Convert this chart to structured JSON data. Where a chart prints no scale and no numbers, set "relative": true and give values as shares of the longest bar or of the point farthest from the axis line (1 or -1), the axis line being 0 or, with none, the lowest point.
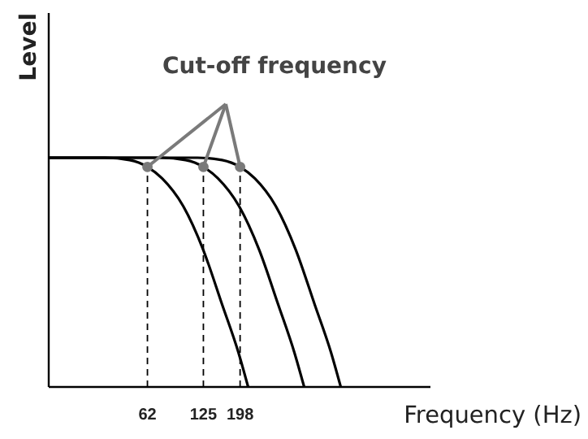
{
  "chart_data": {
    "type": "line",
    "relative": true,
    "log": "x",
    "xlabel": "Frequency (Hz)",
    "ylabel": "Level",
    "xlim": [
      18,
      2150
    ],
    "xticks": [
      62,
      125,
      198
    ],
    "grid": false,
    "line_style": "solid",
    "annotations": [
      "Cut-off frequency"
    ],
    "ref_lines": [
      {
        "axis": "x",
        "value": 62,
        "line_style": "dashed"
      },
      {
        "axis": "x",
        "value": 125,
        "line_style": "dashed"
      },
      {
        "axis": "x",
        "value": 198,
        "line_style": "dashed"
      }
    ],
    "series": [
      {
        "color": "#000000",
        "x": [
          18,
          36.5,
          49.6,
          62,
          74.5,
          96.9,
          124.5,
          158,
          194,
          219
        ],
        "values": [
          1,
          1,
          0.99,
          0.96,
          0.91,
          0.79,
          0.6,
          0.36,
          0.15,
          0
        ]
      },
      {
        "color": "#000000",
        "x": [
          18,
          73.6,
          100,
          125,
          150,
          195,
          251,
          319,
          391,
          442
        ],
        "values": [
          1,
          1,
          0.99,
          0.96,
          0.91,
          0.79,
          0.6,
          0.36,
          0.15,
          0
        ]
      },
      {
        "color": "#000000",
        "x": [
          18,
          116,
          158,
          198,
          238,
          309,
          397,
          504,
          619,
          699
        ],
        "values": [
          1,
          1,
          0.99,
          0.96,
          0.91,
          0.79,
          0.6,
          0.36,
          0.15,
          0
        ]
      },
      {
        "type": "scatter",
        "marker": "circle",
        "color": "#7a7a7a",
        "x": [
          62,
          125,
          198
        ],
        "values": [
          0.96,
          0.96,
          0.96
        ]
      }
    ]
  }
}
